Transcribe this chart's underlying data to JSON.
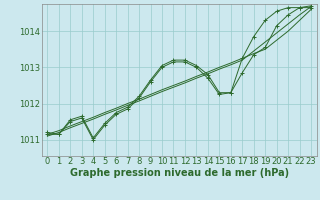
{
  "background_color": "#cce8ee",
  "grid_color": "#99cccc",
  "line_color": "#2d6a2d",
  "xlabel": "Graphe pression niveau de la mer (hPa)",
  "xlabel_fontsize": 7,
  "tick_fontsize": 6,
  "xlim": [
    -0.5,
    23.5
  ],
  "ylim": [
    1010.55,
    1014.75
  ],
  "xticks": [
    0,
    1,
    2,
    3,
    4,
    5,
    6,
    7,
    8,
    9,
    10,
    11,
    12,
    13,
    14,
    15,
    16,
    17,
    18,
    19,
    20,
    21,
    22,
    23
  ],
  "yticks": [
    1011,
    1012,
    1013,
    1014
  ],
  "series_wavy1": [
    1011.2,
    1011.15,
    1011.55,
    1011.65,
    1011.05,
    1011.45,
    1011.75,
    1011.9,
    1012.2,
    1012.65,
    1013.05,
    1013.2,
    1013.2,
    1013.05,
    1012.8,
    1012.3,
    1012.3,
    1012.85,
    1013.35,
    1013.55,
    1014.15,
    1014.45,
    1014.65,
    1014.7
  ],
  "series_wavy2": [
    1011.15,
    1011.15,
    1011.5,
    1011.6,
    1011.0,
    1011.4,
    1011.7,
    1011.85,
    1012.15,
    1012.6,
    1013.0,
    1013.15,
    1013.15,
    1013.0,
    1012.7,
    1012.25,
    1012.3,
    1013.25,
    1013.85,
    1014.3,
    1014.55,
    1014.65,
    1014.65,
    1014.65
  ],
  "series_straight1": [
    1011.15,
    1011.25,
    1011.38,
    1011.5,
    1011.62,
    1011.75,
    1011.87,
    1012.0,
    1012.12,
    1012.25,
    1012.38,
    1012.5,
    1012.62,
    1012.75,
    1012.87,
    1013.0,
    1013.12,
    1013.25,
    1013.38,
    1013.5,
    1013.75,
    1014.0,
    1014.3,
    1014.6
  ],
  "series_straight2": [
    1011.1,
    1011.2,
    1011.33,
    1011.45,
    1011.57,
    1011.7,
    1011.82,
    1011.95,
    1012.07,
    1012.2,
    1012.33,
    1012.45,
    1012.57,
    1012.7,
    1012.82,
    1012.95,
    1013.07,
    1013.2,
    1013.45,
    1013.7,
    1013.95,
    1014.2,
    1014.45,
    1014.68
  ]
}
